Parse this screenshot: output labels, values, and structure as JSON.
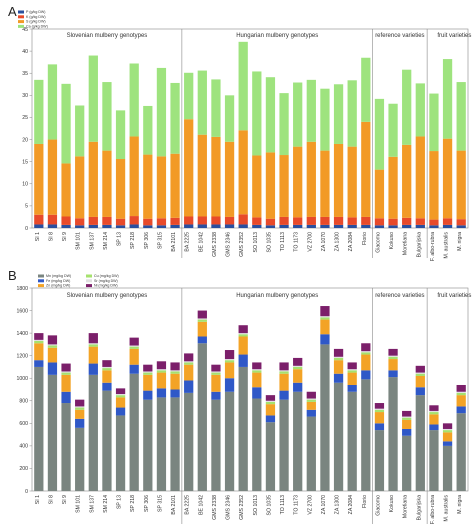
{
  "panels": {
    "A": {
      "letter": "A"
    },
    "B": {
      "letter": "B"
    }
  },
  "chart_data": [
    {
      "type": "bar",
      "stacked": true,
      "panel": "A",
      "ylim": [
        0,
        45
      ],
      "yticks": [
        0,
        5,
        10,
        15,
        20,
        25,
        30,
        35,
        40,
        45
      ],
      "groups": [
        {
          "label": "Slovenian mulberry genotypes",
          "start": 0,
          "end": 10
        },
        {
          "label": "Hungarian mulberry genotypes",
          "start": 11,
          "end": 24
        },
        {
          "label": "reference varieties",
          "start": 25,
          "end": 28
        },
        {
          "label": "fruit varieties",
          "start": 29,
          "end": 32
        }
      ],
      "categories": [
        "SI 1",
        "SI 8",
        "SI 9",
        "SM 101",
        "SM 137",
        "SM 214",
        "SP 13",
        "SP 218",
        "SP 306",
        "SP 315",
        "BA 2101",
        "BA 2225",
        "BE 1042",
        "GMS 2338",
        "GMS 2346",
        "GMS 2352",
        "SO 1013",
        "SO 1035",
        "TO 1113",
        "TO 1173",
        "VZ 2700",
        "ZA 1070",
        "ZA 1300",
        "ZA 2084",
        "Florio",
        "Giacomo",
        "Kokuso",
        "Moretiana",
        "Bulgarijska",
        "F. albo-rubra",
        "M. australis",
        "M. nigra"
      ],
      "series": [
        {
          "name": "P (g/kg DW)",
          "color": "#2a4f9e",
          "values": [
            0.8,
            0.8,
            0.7,
            0.6,
            0.7,
            0.7,
            0.6,
            0.8,
            0.6,
            0.6,
            0.7,
            0.8,
            0.8,
            0.8,
            0.8,
            0.8,
            0.7,
            0.6,
            0.7,
            0.7,
            0.7,
            0.7,
            0.7,
            0.7,
            0.7,
            0.6,
            0.6,
            0.7,
            0.7,
            0.6,
            0.7,
            0.6
          ]
        },
        {
          "name": "K (g/kg DW)",
          "color": "#e84a2a",
          "values": [
            2.2,
            2.2,
            1.9,
            1.6,
            1.8,
            1.8,
            1.5,
            1.9,
            1.5,
            1.6,
            1.6,
            1.8,
            1.8,
            1.8,
            1.7,
            2.3,
            1.7,
            1.5,
            1.8,
            1.7,
            1.8,
            1.8,
            1.8,
            1.7,
            1.8,
            1.6,
            1.5,
            1.6,
            1.5,
            1.3,
            1.5,
            1.4
          ]
        },
        {
          "name": "S (g/kg DW)",
          "color": "#f29a26",
          "values": [
            16.0,
            17.0,
            12.0,
            14.0,
            17.0,
            15.0,
            13.5,
            18.0,
            14.5,
            14.0,
            14.5,
            22.0,
            18.5,
            18.0,
            17.0,
            19.0,
            14.0,
            15.0,
            14.0,
            16.0,
            17.0,
            15.0,
            16.5,
            16.0,
            21.5,
            11.0,
            14.0,
            16.5,
            18.5,
            15.5,
            18.0,
            15.5
          ]
        },
        {
          "name": "Ca (g/kg DW)",
          "color": "#9ee37e",
          "values": [
            14.5,
            17.0,
            18.0,
            11.5,
            19.5,
            15.5,
            11.0,
            16.5,
            11.0,
            20.0,
            16.0,
            10.5,
            14.5,
            13.0,
            10.5,
            20.0,
            19.0,
            17.0,
            14.0,
            14.5,
            14.0,
            14.0,
            13.5,
            15.0,
            14.5,
            16.0,
            12.0,
            17.0,
            12.0,
            13.0,
            18.0,
            15.5
          ]
        }
      ]
    },
    {
      "type": "bar",
      "stacked": true,
      "panel": "B",
      "ylim": [
        0,
        1800
      ],
      "yticks": [
        0,
        200,
        400,
        600,
        800,
        1000,
        1200,
        1400,
        1600,
        1800
      ],
      "groups": [
        {
          "label": "Slovenian mulberry genotypes",
          "start": 0,
          "end": 10
        },
        {
          "label": "Hungarian mulberry genotypes",
          "start": 11,
          "end": 24
        },
        {
          "label": "reference varieties",
          "start": 25,
          "end": 28
        },
        {
          "label": "fruit varieties",
          "start": 29,
          "end": 32
        }
      ],
      "categories": [
        "SI 1",
        "SI 8",
        "SI 9",
        "SM 101",
        "SM 137",
        "SM 214",
        "SP 13",
        "SP 218",
        "SP 306",
        "SP 315",
        "BA 2101",
        "BA 2225",
        "BE 1042",
        "GMS 2338",
        "GMS 2346",
        "GMS 2352",
        "SO 1013",
        "SO 1035",
        "TO 1113",
        "TO 1173",
        "VZ 2700",
        "ZA 1070",
        "ZA 1300",
        "ZA 2084",
        "Florio",
        "Giacomo",
        "Kokuso",
        "Moretiana",
        "Bulgarijska",
        "F. albo-rubra",
        "M. australis",
        "M. nigra"
      ],
      "series": [
        {
          "name": "Mn (mg/kg DW)",
          "color": "#7a8580",
          "values": [
            1100,
            1030,
            780,
            560,
            1030,
            890,
            670,
            1040,
            810,
            830,
            830,
            870,
            1310,
            810,
            880,
            1100,
            820,
            610,
            810,
            880,
            660,
            1300,
            960,
            880,
            990,
            540,
            1010,
            490,
            850,
            540,
            400,
            690
          ]
        },
        {
          "name": "Fe (mg/kg DW)",
          "color": "#2f58c7",
          "values": [
            60,
            110,
            100,
            80,
            100,
            70,
            70,
            80,
            80,
            80,
            70,
            110,
            60,
            70,
            120,
            110,
            100,
            60,
            80,
            80,
            60,
            90,
            80,
            60,
            80,
            60,
            60,
            60,
            70,
            50,
            40,
            60
          ]
        },
        {
          "name": "Zn (mg/kg DW)",
          "color": "#f3a326",
          "values": [
            150,
            130,
            150,
            80,
            150,
            110,
            90,
            140,
            140,
            140,
            140,
            140,
            130,
            150,
            140,
            160,
            130,
            100,
            150,
            120,
            70,
            130,
            120,
            110,
            140,
            100,
            100,
            80,
            100,
            90,
            80,
            100
          ]
        },
        {
          "name": "Cu (mg/kg DW)",
          "color": "#a6e26e",
          "values": [
            20,
            20,
            20,
            20,
            20,
            20,
            20,
            20,
            20,
            20,
            20,
            20,
            20,
            20,
            20,
            20,
            20,
            20,
            20,
            20,
            20,
            20,
            20,
            20,
            20,
            20,
            20,
            20,
            20,
            20,
            20,
            20
          ]
        },
        {
          "name": "Sr (mg/kg DW)",
          "color": "#e0e0e0",
          "values": [
            10,
            10,
            10,
            10,
            10,
            10,
            10,
            10,
            10,
            10,
            10,
            10,
            10,
            10,
            10,
            10,
            10,
            10,
            10,
            10,
            10,
            10,
            10,
            10,
            10,
            10,
            10,
            10,
            10,
            10,
            10,
            10
          ]
        },
        {
          "name": "Ni (mg/kg DW)",
          "color": "#7b1f6a",
          "values": [
            60,
            80,
            70,
            60,
            90,
            60,
            50,
            70,
            60,
            70,
            70,
            70,
            70,
            60,
            80,
            70,
            60,
            50,
            70,
            70,
            60,
            90,
            70,
            60,
            70,
            50,
            60,
            50,
            60,
            50,
            50,
            60
          ]
        }
      ]
    }
  ]
}
